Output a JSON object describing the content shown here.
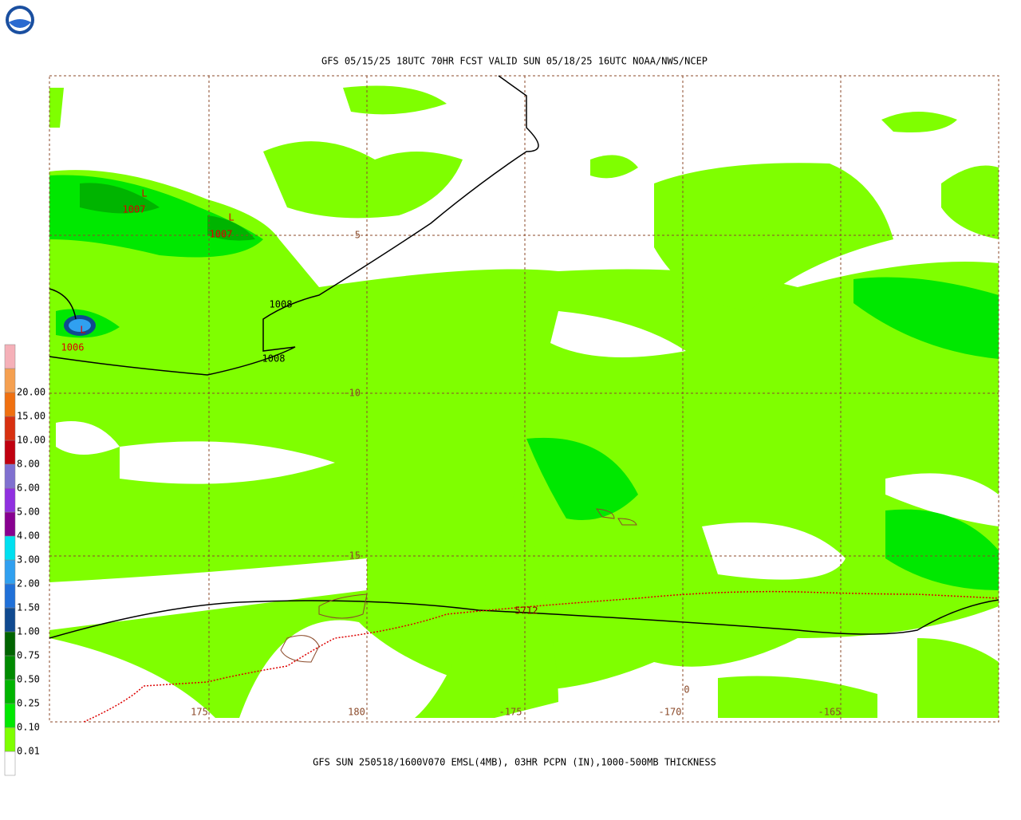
{
  "header": {
    "title": "GFS 05/15/25 18UTC 70HR FCST VALID SUN 05/18/25 16UTC NOAA/NWS/NCEP"
  },
  "map": {
    "lon_labels": [
      "175",
      "180",
      "-175",
      "-170",
      "-165"
    ],
    "lat_labels": [
      "-5",
      "-10",
      "-15"
    ],
    "contour_labels": [
      "1007",
      "1007",
      "1006",
      "1008",
      "1008",
      "5712",
      "0"
    ],
    "low_marker": "L"
  },
  "legend": {
    "items": [
      {
        "label": "0.01",
        "color": "#7fff00"
      },
      {
        "label": "0.10",
        "color": "#00e800"
      },
      {
        "label": "0.25",
        "color": "#00b400"
      },
      {
        "label": "0.50",
        "color": "#008a00"
      },
      {
        "label": "0.75",
        "color": "#006400"
      },
      {
        "label": "1.00",
        "color": "#104a90"
      },
      {
        "label": "1.50",
        "color": "#2070d8"
      },
      {
        "label": "2.00",
        "color": "#30a0f0"
      },
      {
        "label": "3.00",
        "color": "#00e0f0"
      },
      {
        "label": "4.00",
        "color": "#880090"
      },
      {
        "label": "5.00",
        "color": "#9030e0"
      },
      {
        "label": "6.00",
        "color": "#8070d0"
      },
      {
        "label": "8.00",
        "color": "#c00010"
      },
      {
        "label": "10.00",
        "color": "#d83010"
      },
      {
        "label": "15.00",
        "color": "#f07010"
      },
      {
        "label": "20.00",
        "color": "#f5a050"
      }
    ],
    "top_color": "#f5b0b8"
  },
  "footer": {
    "caption": "GFS SUN 250518/1600V070 EMSL(4MB), 03HR PCPN (IN),1000-500MB THICKNESS"
  }
}
